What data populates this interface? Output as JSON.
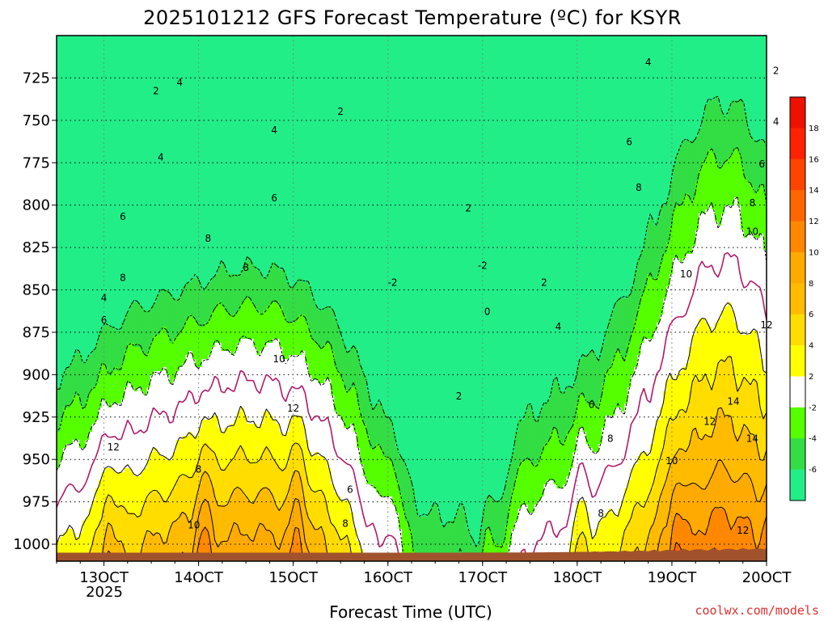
{
  "chart_data": {
    "type": "heatmap",
    "title": "2025101212 GFS Forecast Temperature (ºC) for KSYR",
    "xlabel": "Forecast Time (UTC)",
    "ylabel": "",
    "credit": "coolwx.com/models",
    "x_ticks": [
      "13OCT",
      "14OCT",
      "15OCT",
      "16OCT",
      "17OCT",
      "18OCT",
      "19OCT",
      "20OCT"
    ],
    "x_year": "2025",
    "x_range_days": [
      12.5,
      20.0
    ],
    "y_ticks": [
      725,
      750,
      775,
      800,
      825,
      850,
      875,
      900,
      925,
      950,
      975,
      1000
    ],
    "y_range_hpa": [
      700,
      1010
    ],
    "colorbar": {
      "ticks": [
        "18",
        "16",
        "14",
        "12",
        "10",
        "8",
        "6",
        "4",
        "2",
        "-2",
        "-4",
        "-6"
      ],
      "levels": [
        -8,
        -6,
        -4,
        -2,
        2,
        4,
        6,
        8,
        10,
        12,
        14,
        16,
        18,
        20
      ],
      "colors": [
        "#22ee88",
        "#33dd44",
        "#55ff00",
        "#ffffff",
        "#ffff00",
        "#ffdd00",
        "#ffbb00",
        "#ffaa00",
        "#ff8800",
        "#ff6600",
        "#ff4400",
        "#ff2200",
        "#ee1100"
      ]
    },
    "ground_color": "#a0522d",
    "frozen_contour_color": "#b0186a",
    "contour_labels": [
      {
        "t": 13.2,
        "p": 807,
        "v": "6"
      },
      {
        "t": 13.0,
        "p": 855,
        "v": "4"
      },
      {
        "t": 13.2,
        "p": 843,
        "v": "8"
      },
      {
        "t": 13.0,
        "p": 868,
        "v": "6"
      },
      {
        "t": 13.55,
        "p": 733,
        "v": "2"
      },
      {
        "t": 13.6,
        "p": 772,
        "v": "4"
      },
      {
        "t": 13.8,
        "p": 728,
        "v": "4"
      },
      {
        "t": 14.1,
        "p": 820,
        "v": "8"
      },
      {
        "t": 14.5,
        "p": 837,
        "v": "8"
      },
      {
        "t": 14.8,
        "p": 756,
        "v": "4"
      },
      {
        "t": 14.8,
        "p": 796,
        "v": "6"
      },
      {
        "t": 15.5,
        "p": 745,
        "v": "2"
      },
      {
        "t": 14.85,
        "p": 891,
        "v": "10"
      },
      {
        "t": 15.0,
        "p": 920,
        "v": "12"
      },
      {
        "t": 13.1,
        "p": 943,
        "v": "12"
      },
      {
        "t": 14.0,
        "p": 956,
        "v": "8"
      },
      {
        "t": 13.95,
        "p": 989,
        "v": "10"
      },
      {
        "t": 15.6,
        "p": 968,
        "v": "6"
      },
      {
        "t": 15.55,
        "p": 988,
        "v": "8"
      },
      {
        "t": 16.05,
        "p": 846,
        "v": "-2"
      },
      {
        "t": 16.85,
        "p": 802,
        "v": "2"
      },
      {
        "t": 17.0,
        "p": 836,
        "v": "-2"
      },
      {
        "t": 17.05,
        "p": 863,
        "v": "0"
      },
      {
        "t": 16.75,
        "p": 913,
        "v": "2"
      },
      {
        "t": 17.65,
        "p": 846,
        "v": "2"
      },
      {
        "t": 17.8,
        "p": 872,
        "v": "4"
      },
      {
        "t": 18.15,
        "p": 918,
        "v": "6"
      },
      {
        "t": 18.35,
        "p": 938,
        "v": "8"
      },
      {
        "t": 18.25,
        "p": 982,
        "v": "8"
      },
      {
        "t": 18.55,
        "p": 763,
        "v": "6"
      },
      {
        "t": 18.75,
        "p": 716,
        "v": "4"
      },
      {
        "t": 18.65,
        "p": 790,
        "v": "8"
      },
      {
        "t": 19.15,
        "p": 841,
        "v": "10"
      },
      {
        "t": 19.0,
        "p": 951,
        "v": "10"
      },
      {
        "t": 19.4,
        "p": 928,
        "v": "12"
      },
      {
        "t": 19.65,
        "p": 916,
        "v": "14"
      },
      {
        "t": 19.85,
        "p": 938,
        "v": "14"
      },
      {
        "t": 19.75,
        "p": 992,
        "v": "12"
      },
      {
        "t": 20.0,
        "p": 871,
        "v": "12"
      },
      {
        "t": 19.85,
        "p": 816,
        "v": "10"
      },
      {
        "t": 19.85,
        "p": 799,
        "v": "8"
      },
      {
        "t": 19.95,
        "p": 776,
        "v": "6"
      },
      {
        "t": 20.1,
        "p": 751,
        "v": "4"
      },
      {
        "t": 20.1,
        "p": 721,
        "v": "2"
      }
    ]
  }
}
